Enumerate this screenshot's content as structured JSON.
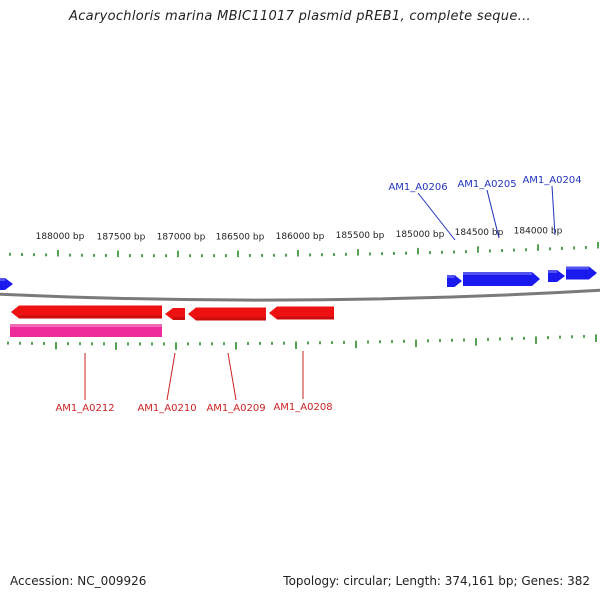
{
  "title": "Acaryochloris marina MBIC11017 plasmid pREB1, complete seque...",
  "footer": {
    "accession": "Accession: NC_009926",
    "summary": "Topology: circular; Length: 374,161 bp; Genes: 382"
  },
  "colors": {
    "forward_gene": "#1a1aee",
    "reverse_gene": "#ee1111",
    "reverse_other": "#ee2b9a",
    "tick": "#2a8a2a",
    "backbone": "#7a7a7a",
    "forward_label": "#2233bb",
    "reverse_label": "#cc2222"
  },
  "ruler": {
    "labels": [
      "188000 bp",
      "187500 bp",
      "187000 bp",
      "186500 bp",
      "186000 bp",
      "185500 bp",
      "185000 bp",
      "184500 bp",
      "184000 bp"
    ]
  },
  "genes": {
    "forward_labels": [
      "AM1_A0206",
      "AM1_A0205",
      "AM1_A0204"
    ],
    "reverse_labels": [
      "AM1_A0212",
      "AM1_A0210",
      "AM1_A0209",
      "AM1_A0208"
    ]
  }
}
